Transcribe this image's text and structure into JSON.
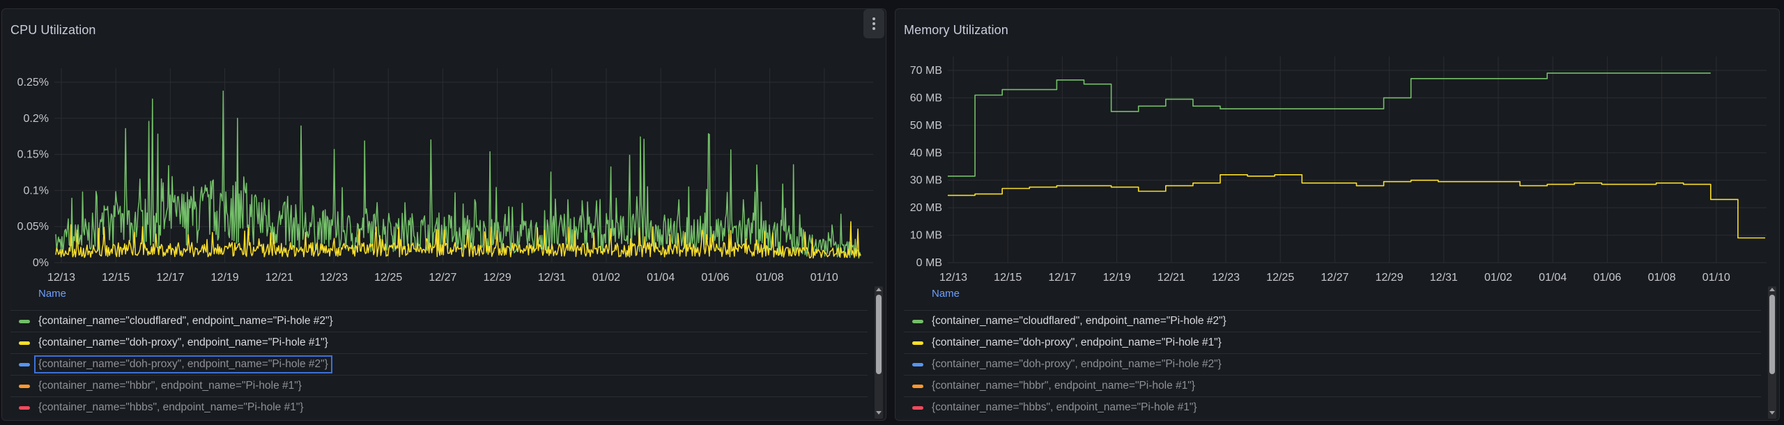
{
  "dashboard": {
    "panels": [
      {
        "id": "cpu",
        "title": "CPU Utilization",
        "menu_icon": "kebab-menu-icon",
        "y_ticks": [
          "0%",
          "0.05%",
          "0.1%",
          "0.15%",
          "0.2%",
          "0.25%"
        ],
        "x_ticks": [
          "12/13",
          "12/15",
          "12/17",
          "12/19",
          "12/21",
          "12/23",
          "12/25",
          "12/27",
          "12/29",
          "12/31",
          "01/02",
          "01/04",
          "01/06",
          "01/08",
          "01/10"
        ],
        "legend_header": "Name",
        "legend": [
          {
            "label": "{container_name=\"cloudflared\", endpoint_name=\"Pi-hole #2\"}",
            "color": "#73bf69",
            "state": "active"
          },
          {
            "label": "{container_name=\"doh-proxy\", endpoint_name=\"Pi-hole #1\"}",
            "color": "#fade2a",
            "state": "active"
          },
          {
            "label": "{container_name=\"doh-proxy\", endpoint_name=\"Pi-hole #2\"}",
            "color": "#5794f2",
            "state": "hidden-focused"
          },
          {
            "label": "{container_name=\"hbbr\", endpoint_name=\"Pi-hole #1\"}",
            "color": "#ff9830",
            "state": "hidden"
          },
          {
            "label": "{container_name=\"hbbs\", endpoint_name=\"Pi-hole #1\"}",
            "color": "#f2495c",
            "state": "hidden"
          }
        ]
      },
      {
        "id": "memory",
        "title": "Memory Utilization",
        "y_ticks": [
          "0 MB",
          "10 MB",
          "20 MB",
          "30 MB",
          "40 MB",
          "50 MB",
          "60 MB",
          "70 MB"
        ],
        "x_ticks": [
          "12/13",
          "12/15",
          "12/17",
          "12/19",
          "12/21",
          "12/23",
          "12/25",
          "12/27",
          "12/29",
          "12/31",
          "01/02",
          "01/04",
          "01/06",
          "01/08",
          "01/10"
        ],
        "legend_header": "Name",
        "legend": [
          {
            "label": "{container_name=\"cloudflared\", endpoint_name=\"Pi-hole #2\"}",
            "color": "#73bf69",
            "state": "active"
          },
          {
            "label": "{container_name=\"doh-proxy\", endpoint_name=\"Pi-hole #1\"}",
            "color": "#fade2a",
            "state": "active"
          },
          {
            "label": "{container_name=\"doh-proxy\", endpoint_name=\"Pi-hole #2\"}",
            "color": "#5794f2",
            "state": "hidden"
          },
          {
            "label": "{container_name=\"hbbr\", endpoint_name=\"Pi-hole #1\"}",
            "color": "#ff9830",
            "state": "hidden"
          },
          {
            "label": "{container_name=\"hbbs\", endpoint_name=\"Pi-hole #1\"}",
            "color": "#f2495c",
            "state": "hidden"
          }
        ]
      }
    ]
  },
  "chart_data": [
    {
      "type": "line",
      "title": "CPU Utilization",
      "xlabel": "",
      "ylabel": "",
      "ylim": [
        0,
        0.0027
      ],
      "y_unit": "percent",
      "grid": true,
      "legend_position": "bottom-list",
      "categories": [
        "12/13",
        "12/15",
        "12/17",
        "12/19",
        "12/21",
        "12/23",
        "12/25",
        "12/27",
        "12/29",
        "12/31",
        "01/02",
        "01/04",
        "01/06",
        "01/08",
        "01/10"
      ],
      "series": [
        {
          "name": "{container_name=\"cloudflared\", endpoint_name=\"Pi-hole #2\"}",
          "color": "#73bf69",
          "values_pct": [
            0.03,
            0.06,
            0.07,
            0.09,
            0.06,
            0.05,
            0.05,
            0.05,
            0.04,
            0.05,
            0.05,
            0.05,
            0.05,
            0.03,
            0.02
          ],
          "peaks_pct": [
            0.26,
            0.18,
            0.26,
            0.24,
            0.23,
            0.17,
            0.18,
            0.19,
            0.18,
            0.17,
            0.18,
            0.21,
            0.22,
            0.16,
            0.05
          ]
        },
        {
          "name": "{container_name=\"doh-proxy\", endpoint_name=\"Pi-hole #1\"}",
          "color": "#fade2a",
          "values_pct": [
            0.015,
            0.02,
            0.02,
            0.02,
            0.02,
            0.02,
            0.02,
            0.02,
            0.02,
            0.02,
            0.02,
            0.02,
            0.02,
            0.015,
            0.015
          ],
          "peaks_pct": [
            0.055,
            0.05,
            0.05,
            0.05,
            0.05,
            0.05,
            0.05,
            0.05,
            0.05,
            0.05,
            0.05,
            0.05,
            0.05,
            0.05,
            0.06
          ]
        }
      ]
    },
    {
      "type": "line",
      "title": "Memory Utilization",
      "xlabel": "",
      "ylabel": "",
      "ylim": [
        0,
        75
      ],
      "y_unit": "MB",
      "grid": true,
      "legend_position": "bottom-list",
      "categories": [
        "12/13",
        "12/14",
        "12/15",
        "12/16",
        "12/17",
        "12/18",
        "12/19",
        "12/20",
        "12/21",
        "12/22",
        "12/23",
        "12/24",
        "12/25",
        "12/26",
        "12/27",
        "12/28",
        "12/29",
        "12/30",
        "12/31",
        "01/01",
        "01/02",
        "01/03",
        "01/04",
        "01/05",
        "01/06",
        "01/07",
        "01/08",
        "01/09",
        "01/10",
        "01/11"
      ],
      "series": [
        {
          "name": "{container_name=\"cloudflared\", endpoint_name=\"Pi-hole #2\"}",
          "color": "#73bf69",
          "values": [
            31.5,
            61,
            63,
            63,
            66.5,
            65,
            55,
            57,
            59.5,
            57,
            56,
            56,
            56,
            56,
            56,
            56,
            60,
            67,
            67,
            67,
            67,
            67,
            69,
            69,
            69,
            69,
            69,
            69,
            null,
            null
          ]
        },
        {
          "name": "{container_name=\"doh-proxy\", endpoint_name=\"Pi-hole #1\"}",
          "color": "#fade2a",
          "values": [
            24.5,
            25,
            27,
            27.5,
            28,
            28,
            27.5,
            26,
            28,
            29,
            32,
            31.5,
            32,
            29,
            29,
            28,
            29.5,
            30,
            29.5,
            29.5,
            29.5,
            28,
            28.5,
            29,
            28.5,
            28.5,
            29,
            28.5,
            23,
            9
          ]
        }
      ]
    }
  ]
}
